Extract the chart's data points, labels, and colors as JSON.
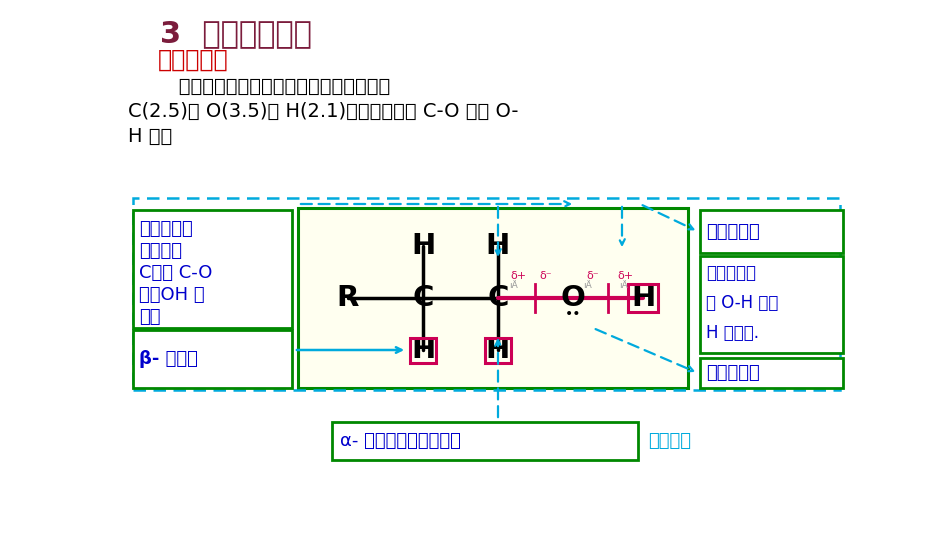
{
  "title": "3  醇的化学性质",
  "subtitle": "结构与性质",
  "body_text1": "   醇的官能团是羟基，各原子的电负性为：",
  "body_text2": "C(2.5)、 O(3.5)、 H(2.1)，形成极性的 C-O 键和 O-",
  "body_text3": "H 键。",
  "title_color": "#7B1C3C",
  "subtitle_color": "#CC0000",
  "body_color": "#000000",
  "blue_color": "#0000CC",
  "cyan_color": "#00AADD",
  "green_border": "#008800",
  "pink_color": "#CC0055",
  "bg_color": "#FFFFFF",
  "mol_bg": "#FFFFF0",
  "left_box_text": [
    "亲核试剂进",
    "攻带正电",
    "C，断 C-O",
    "键，OH 被",
    "取代"
  ],
  "left_box_label": "β- 氢消除",
  "right_top_label": "羟基质子化",
  "right_mid_text": [
    "有弱酸性，",
    "断 O-H 键，",
    "H 被取代."
  ],
  "right_bot_label": "作亲核试剂",
  "bottom_label": "α- 氢原子被氧化或脱氢",
  "bottom_right": "氧化反应"
}
